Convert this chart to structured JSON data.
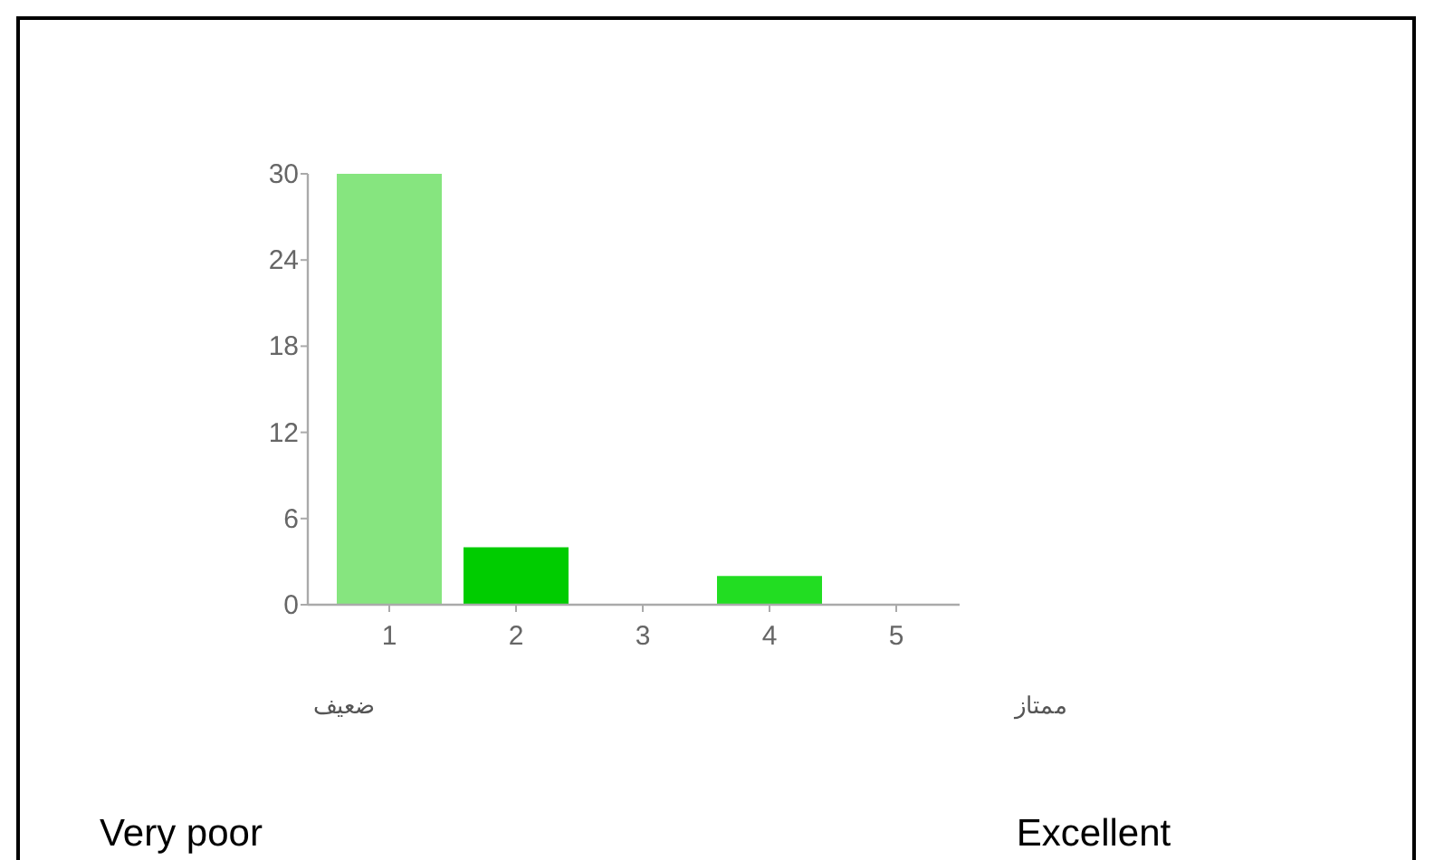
{
  "chart_data": {
    "type": "bar",
    "categories": [
      "1",
      "2",
      "3",
      "4",
      "5"
    ],
    "values": [
      30,
      4,
      0,
      2,
      0
    ],
    "colors": [
      "#86e57f",
      "#00cc00",
      "#00cc00",
      "#22dd22",
      "#00cc00"
    ],
    "ylim": [
      0,
      30
    ],
    "yticks": [
      0,
      6,
      12,
      18,
      24,
      30
    ],
    "annotations": [
      "ضعيف",
      "ممتاز",
      "Very poor",
      "Excellent"
    ]
  }
}
